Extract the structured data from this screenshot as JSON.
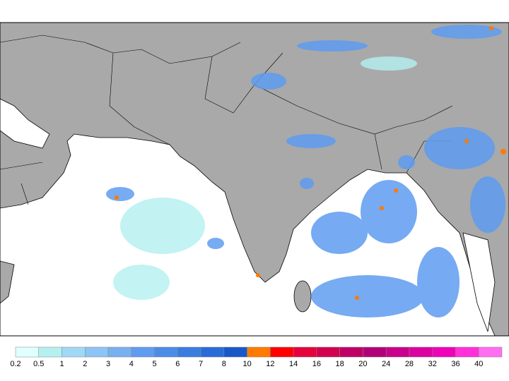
{
  "colorbar": {
    "levels": [
      0.2,
      0.5,
      1,
      2,
      3,
      4,
      5,
      6,
      7,
      8,
      10,
      12,
      14,
      16,
      18,
      20,
      24,
      28,
      32,
      36,
      40
    ],
    "colors": [
      "#e0ffff",
      "#b4f0f0",
      "#a0d8f5",
      "#8cc4f5",
      "#78b0f0",
      "#5f9cf0",
      "#4b8ce8",
      "#3a7ce0",
      "#286cd8",
      "#1858c8",
      "#ff7a00",
      "#ff0000",
      "#e6003c",
      "#d2004e",
      "#be0064",
      "#b40078",
      "#c8008c",
      "#dc00a0",
      "#f000b9",
      "#ff30d8",
      "#ff6ef0"
    ]
  }
}
